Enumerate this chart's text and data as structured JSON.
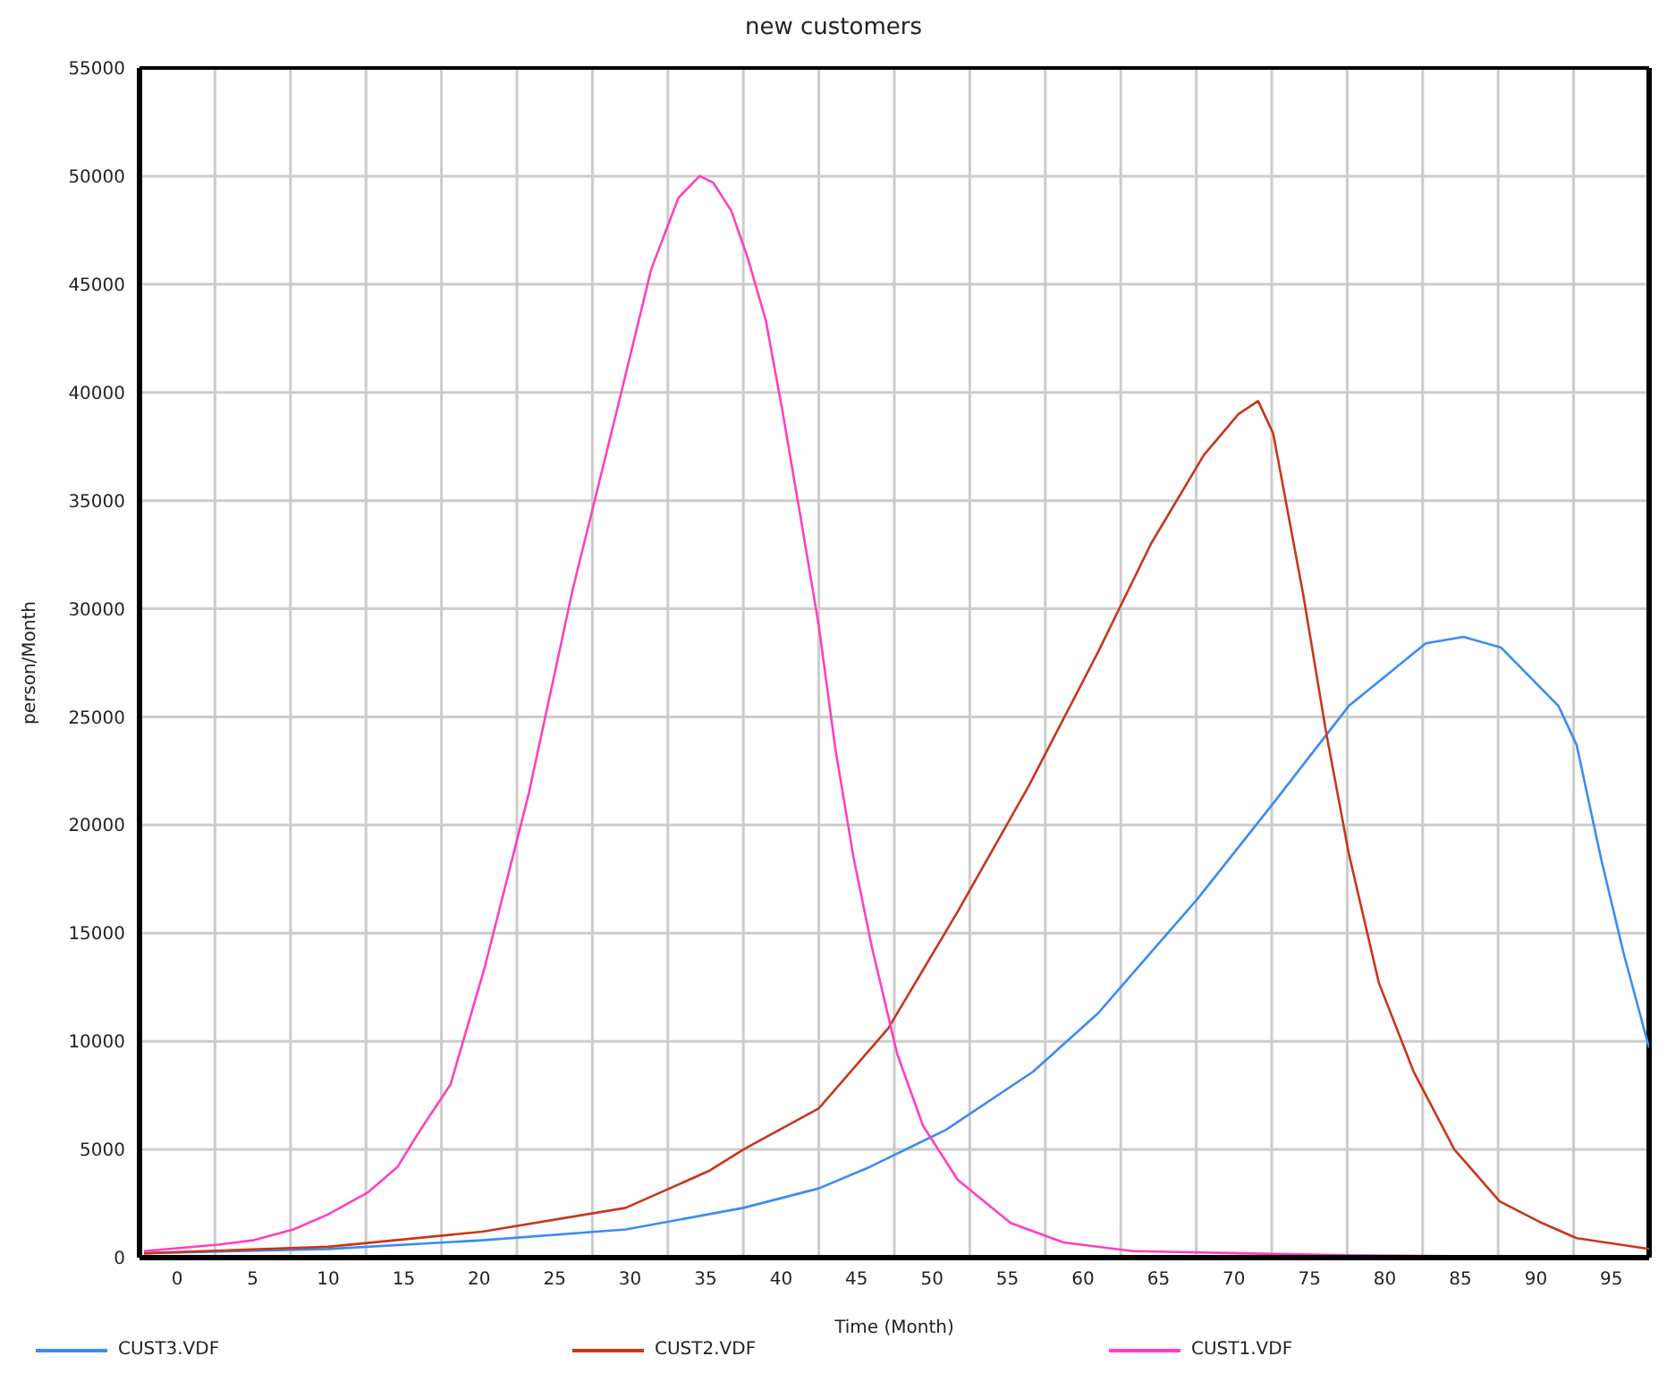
{
  "chart_data": {
    "type": "line",
    "title": "new customers",
    "xlabel": "Time (Month)",
    "ylabel": "person/Month",
    "xlim": [
      -2.5,
      97.5
    ],
    "ylim": [
      0,
      55000
    ],
    "xticks": [
      0,
      {
        "value": 2.5,
        "label": null
      },
      5,
      {
        "value": 7.5,
        "label": null
      },
      10,
      {
        "value": 12.5,
        "label": null
      },
      15,
      {
        "value": 17.5,
        "label": null
      },
      20,
      {
        "value": 22.5,
        "label": null
      },
      25,
      {
        "value": 27.5,
        "label": null
      },
      30,
      {
        "value": 32.5,
        "label": null
      },
      35,
      {
        "value": 37.5,
        "label": null
      },
      40,
      {
        "value": 42.5,
        "label": null
      },
      45,
      {
        "value": 47.5,
        "label": null
      },
      50,
      {
        "value": 52.5,
        "label": null
      },
      55,
      {
        "value": 57.5,
        "label": null
      },
      60,
      {
        "value": 62.5,
        "label": null
      },
      65,
      {
        "value": 67.5,
        "label": null
      },
      70,
      {
        "value": 72.5,
        "label": null
      },
      75,
      {
        "value": 77.5,
        "label": null
      },
      80,
      {
        "value": 82.5,
        "label": null
      },
      85,
      {
        "value": 87.5,
        "label": null
      },
      90,
      {
        "value": 92.5,
        "label": null
      },
      95
    ],
    "yticks": [
      0,
      5000,
      10000,
      15000,
      20000,
      25000,
      30000,
      35000,
      40000,
      45000,
      50000,
      55000
    ],
    "grid": true,
    "legend": "bottom",
    "marker": "none",
    "line_style": "solid",
    "series": [
      {
        "name": "CUST3.VDF",
        "color": "#3b8cf2",
        "x": [
          -2.2,
          10,
          20.2,
          29.7,
          37.5,
          42.5,
          45.9,
          50.9,
          56.7,
          61,
          67.6,
          72.6,
          77.6,
          82.7,
          85.2,
          87.7,
          91.5,
          92.7,
          94.3,
          95.8,
          97.5
        ],
        "values": [
          200,
          400,
          800,
          1300,
          2300,
          3200,
          4200,
          5900,
          8600,
          11300,
          16600,
          21000,
          25500,
          28400,
          28700,
          28200,
          25500,
          23700,
          18500,
          14100,
          9700
        ]
      },
      {
        "name": "CUST2.VDF",
        "color": "#c8371a",
        "x": [
          -2.2,
          10,
          20.2,
          29.7,
          35.2,
          37.5,
          42.5,
          47.1,
          51.7,
          56.4,
          61,
          64.5,
          68,
          70.3,
          71.6,
          72.6,
          74.6,
          76.1,
          77.6,
          79.6,
          81.9,
          84.6,
          87.6,
          90.4,
          92.7,
          97.5
        ],
        "values": [
          200,
          500,
          1200,
          2300,
          4000,
          5000,
          6900,
          10600,
          16000,
          21800,
          28000,
          33000,
          37100,
          39000,
          39600,
          38100,
          30600,
          24300,
          18700,
          12700,
          8600,
          5000,
          2600,
          1600,
          900,
          400
        ]
      },
      {
        "name": "CUST1.VDF",
        "color": "#ff3fbf",
        "x": [
          -2.2,
          2.7,
          5,
          7.7,
          10,
          12.6,
          14.6,
          16.1,
          18.1,
          20.4,
          23.3,
          26.2,
          29.1,
          31.4,
          33.2,
          34.6,
          35.5,
          36.7,
          37.8,
          39,
          40.1,
          41.3,
          42.5,
          43.6,
          44.8,
          46,
          47.7,
          49.4,
          51.7,
          55.2,
          58.7,
          63.3,
          70.3,
          78.4,
          97.5
        ],
        "values": [
          300,
          600,
          800,
          1300,
          2000,
          3000,
          4200,
          5900,
          8000,
          13500,
          21500,
          30900,
          39100,
          45700,
          49000,
          50000,
          49700,
          48400,
          46200,
          43300,
          39100,
          34200,
          29200,
          23500,
          18500,
          14400,
          9400,
          6100,
          3600,
          1600,
          700,
          300,
          200,
          100,
          0
        ]
      }
    ]
  }
}
